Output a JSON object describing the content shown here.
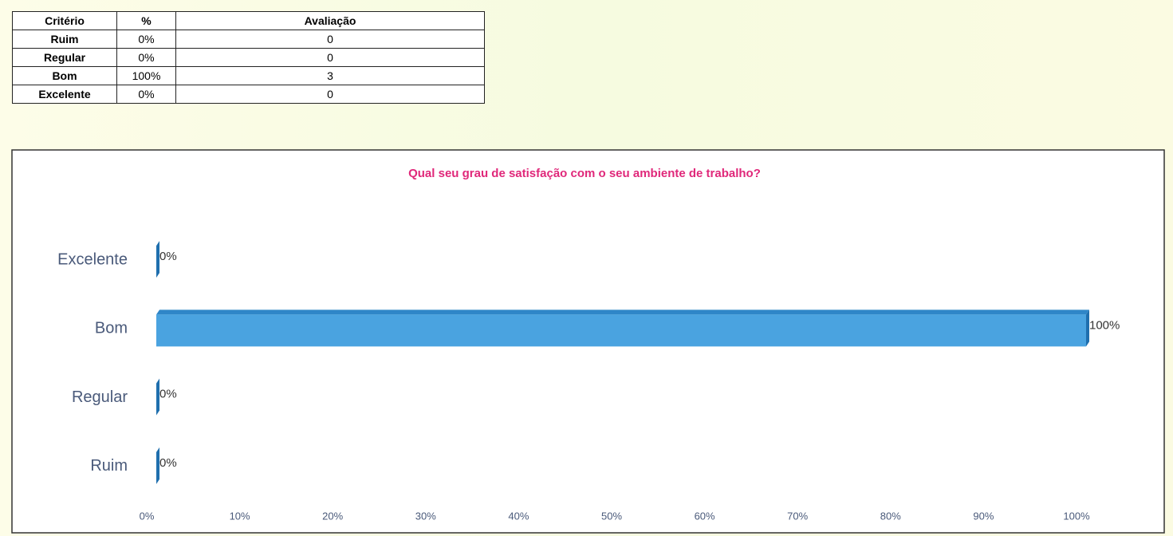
{
  "table": {
    "header": [
      "Critério",
      "%",
      "Avaliação"
    ],
    "rows": [
      [
        "Ruim",
        "0%",
        "0"
      ],
      [
        "Regular",
        "0%",
        "0"
      ],
      [
        "Bom",
        "100%",
        "3"
      ],
      [
        "Excelente",
        "0%",
        "0"
      ]
    ]
  },
  "chart_data": {
    "type": "hbar",
    "title": "Qual seu grau de satisfação com o seu ambiente de trabalho?",
    "categories": [
      "Excelente",
      "Bom",
      "Regular",
      "Ruim"
    ],
    "values": [
      0,
      100,
      0,
      0
    ],
    "value_labels": [
      "0%",
      "100%",
      "0%",
      "0%"
    ],
    "color": "#4aa3e0",
    "xlim": [
      0,
      100
    ],
    "xticks": [
      {
        "value": 0,
        "label": "0%"
      },
      {
        "value": 10,
        "label": "10%"
      },
      {
        "value": 20,
        "label": "20%"
      },
      {
        "value": 30,
        "label": "30%"
      },
      {
        "value": 40,
        "label": "40%"
      },
      {
        "value": 50,
        "label": "50%"
      },
      {
        "value": 60,
        "label": "60%"
      },
      {
        "value": 70,
        "label": "70%"
      },
      {
        "value": 80,
        "label": "80%"
      },
      {
        "value": 90,
        "label": "90%"
      },
      {
        "value": 100,
        "label": "100%"
      }
    ],
    "grid": false
  }
}
